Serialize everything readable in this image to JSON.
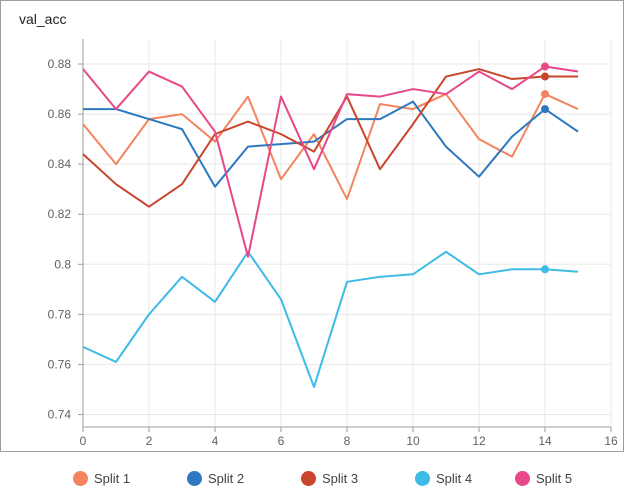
{
  "chart_data": {
    "type": "line",
    "title": "val_acc",
    "xlabel": "",
    "ylabel": "",
    "xlim": [
      0,
      16
    ],
    "ylim": [
      0.735,
      0.89
    ],
    "x_ticks": [
      0,
      2,
      4,
      6,
      8,
      10,
      12,
      14,
      16
    ],
    "x_tick_labels": [
      "0",
      "2",
      "4",
      "6",
      "8",
      "10",
      "12",
      "14",
      "16"
    ],
    "y_ticks": [
      0.74,
      0.76,
      0.78,
      0.8,
      0.82,
      0.84,
      0.86,
      0.88
    ],
    "y_tick_labels": [
      "0.74",
      "0.76",
      "0.78",
      "0.8",
      "0.82",
      "0.84",
      "0.86",
      "0.88"
    ],
    "grid": true,
    "legend_position": "bottom",
    "highlight_x": 14,
    "x": [
      0,
      1,
      2,
      3,
      4,
      5,
      6,
      7,
      8,
      9,
      10,
      11,
      12,
      13,
      14,
      15
    ],
    "series": [
      {
        "name": "Split 1",
        "color": "#f4845f",
        "values": [
          0.856,
          0.84,
          0.858,
          0.86,
          0.849,
          0.867,
          0.834,
          0.852,
          0.826,
          0.864,
          0.862,
          0.868,
          0.85,
          0.843,
          0.868,
          0.862
        ]
      },
      {
        "name": "Split 2",
        "color": "#2e78c0",
        "values": [
          0.862,
          0.862,
          0.858,
          0.854,
          0.831,
          0.847,
          0.848,
          0.849,
          0.858,
          0.858,
          0.865,
          0.847,
          0.835,
          0.851,
          0.862,
          0.853
        ]
      },
      {
        "name": "Split 3",
        "color": "#c9462c",
        "values": [
          0.844,
          0.832,
          0.823,
          0.832,
          0.852,
          0.857,
          0.852,
          0.845,
          0.867,
          0.838,
          0.856,
          0.875,
          0.878,
          0.874,
          0.875,
          0.875
        ]
      },
      {
        "name": "Split 4",
        "color": "#3dbbe6",
        "values": [
          0.767,
          0.761,
          0.78,
          0.795,
          0.785,
          0.805,
          0.786,
          0.751,
          0.793,
          0.795,
          0.796,
          0.805,
          0.796,
          0.798,
          0.798,
          0.797
        ]
      },
      {
        "name": "Split 5",
        "color": "#e8488a",
        "values": [
          0.878,
          0.862,
          0.877,
          0.871,
          0.853,
          0.803,
          0.867,
          0.838,
          0.868,
          0.867,
          0.87,
          0.868,
          0.877,
          0.87,
          0.879,
          0.877
        ]
      }
    ]
  }
}
